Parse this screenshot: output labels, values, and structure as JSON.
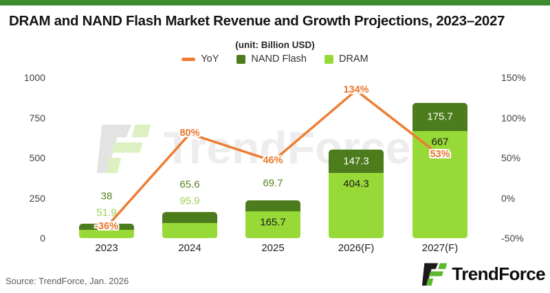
{
  "topbar": {
    "color": "#3c8c2f"
  },
  "header": {
    "title": "DRAM and NAND Flash Market Revenue and Growth Projections, 2023–2027",
    "unit_note": "(unit: Billion USD)"
  },
  "legend": [
    {
      "label": "YoY",
      "marker": "line",
      "color": "#ed7d31"
    },
    {
      "label": "NAND Flash",
      "marker": "square",
      "color": "#4d7c1d"
    },
    {
      "label": "DRAM",
      "marker": "square",
      "color": "#97da38"
    }
  ],
  "chart_data": {
    "type": "bar",
    "subtype": "stacked-bars-with-line",
    "title": "DRAM and NAND Flash Market Revenue and Growth Projections, 2023–2027",
    "unit": "Billion USD",
    "categories": [
      "2023",
      "2024",
      "2025",
      "2026(F)",
      "2027(F)"
    ],
    "series": [
      {
        "name": "DRAM",
        "type": "bar",
        "stack": true,
        "color": "#97da38",
        "values": [
          51.9,
          95.9,
          165.7,
          404.3,
          667
        ],
        "labels": [
          "51.9",
          "95.9",
          "165.7",
          "404.3",
          "667"
        ],
        "label_inside": [
          false,
          false,
          true,
          true,
          true
        ],
        "outside_label_color": "#9ccf55",
        "inside_label_color": "#1a1a1a"
      },
      {
        "name": "NAND Flash",
        "type": "bar",
        "stack": true,
        "color": "#4d7c1d",
        "values": [
          38,
          65.6,
          69.7,
          147.3,
          175.7
        ],
        "labels": [
          "38",
          "65.6",
          "69.7",
          "147.3",
          "175.7"
        ],
        "label_inside": [
          false,
          false,
          false,
          true,
          true
        ],
        "outside_label_color": "#55821c",
        "inside_label_color": "#ffffff"
      },
      {
        "name": "YoY",
        "type": "line",
        "axis": "right",
        "color": "#ed7d31",
        "values": [
          -36,
          80,
          46,
          134,
          53
        ],
        "labels": [
          "-36%",
          "80%",
          "46%",
          "134%",
          "53%"
        ]
      }
    ],
    "left_axis": {
      "ticks": [
        0,
        250,
        500,
        750,
        1000
      ],
      "range": [
        0,
        1000
      ]
    },
    "right_axis": {
      "ticks": [
        "-50%",
        "0%",
        "50%",
        "100%",
        "150%"
      ],
      "range": [
        -50,
        150
      ]
    },
    "grid": false,
    "legend_position": "top"
  },
  "watermark": {
    "text": "TrendForce"
  },
  "footer": {
    "source": "Source: TrendForce, Jan. 2026",
    "brand": "TrendForce"
  }
}
